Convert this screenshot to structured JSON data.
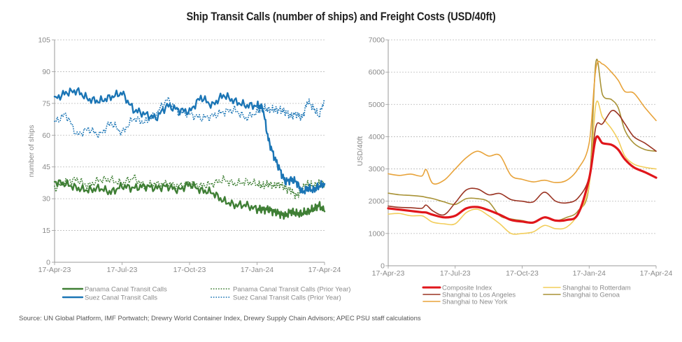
{
  "title": "Ship Transit Calls (number of ships) and Freight Costs (USD/40ft)",
  "source": "Source: UN Global Platform, IMF Portwatch; Drewry World Container Index, Drewry Supply Chain Advisors; APEC PSU staff calculations",
  "chart_data": [
    {
      "type": "line",
      "title": "",
      "ylabel": "number of ships",
      "xlabel": "",
      "ylim": [
        0,
        105
      ],
      "yticks": [
        "0",
        "15",
        "30",
        "45",
        "60",
        "75",
        "90",
        "105"
      ],
      "ytick_values": [
        0,
        15,
        30,
        45,
        60,
        75,
        90,
        105
      ],
      "xticks": [
        "17-Apr-23",
        "17-Jul-23",
        "17-Oct-23",
        "17-Jan-24",
        "17-Apr-24"
      ],
      "x_range_months": [
        0,
        12
      ],
      "grid": true,
      "legend_placement": "bottom",
      "x": [
        0,
        0.5,
        1,
        1.5,
        2,
        2.5,
        3,
        3.5,
        4,
        4.5,
        5,
        5.5,
        6,
        6.5,
        7,
        7.5,
        8,
        8.5,
        9,
        9.25,
        9.5,
        9.75,
        10,
        10.25,
        10.5,
        10.75,
        11,
        11.25,
        11.5,
        11.75,
        12
      ],
      "series": [
        {
          "name": "Panama Canal Transit Calls",
          "color": "#3f7f35",
          "style": "solid",
          "values": [
            38,
            37,
            35,
            34,
            35,
            33,
            36,
            35,
            36,
            35,
            36,
            34,
            37,
            34,
            33,
            29,
            27,
            27,
            25,
            25,
            25,
            24,
            23,
            22,
            24,
            23,
            23,
            24,
            25,
            27,
            24
          ]
        },
        {
          "name": "Suez Canal Transit Calls",
          "color": "#1b75b5",
          "style": "solid",
          "values": [
            77,
            80,
            81,
            77,
            76,
            78,
            80,
            72,
            70,
            68,
            74,
            72,
            71,
            78,
            74,
            79,
            76,
            74,
            74,
            73,
            58,
            50,
            44,
            38,
            39,
            38,
            33,
            35,
            34,
            36,
            37
          ]
        },
        {
          "name": "Panama Canal Transit Calls (Prior Year)",
          "color": "#3f7f35",
          "style": "dotted",
          "values": [
            35,
            38,
            39,
            36,
            39,
            39,
            37,
            40,
            36,
            37,
            37,
            36,
            37,
            36,
            37,
            39,
            37,
            38,
            37,
            36,
            37,
            36,
            37,
            35,
            34,
            31,
            35,
            37,
            36,
            37,
            37
          ]
        },
        {
          "name": "Suez Canal Transit Calls (Prior Year)",
          "color": "#1b75b5",
          "style": "dotted",
          "values": [
            66,
            70,
            60,
            63,
            60,
            66,
            61,
            68,
            66,
            70,
            77,
            71,
            70,
            68,
            69,
            71,
            72,
            68,
            71,
            73,
            72,
            72,
            72,
            71,
            69,
            70,
            68,
            76,
            73,
            69,
            77
          ]
        }
      ]
    },
    {
      "type": "line",
      "title": "",
      "ylabel": "USD/40ft",
      "xlabel": "",
      "ylim": [
        0,
        7000
      ],
      "yticks": [
        "0",
        "1000",
        "2000",
        "3000",
        "4000",
        "5000",
        "6000",
        "7000"
      ],
      "ytick_values": [
        0,
        1000,
        2000,
        3000,
        4000,
        5000,
        6000,
        7000
      ],
      "xticks": [
        "17-Apr-23",
        "17-Jul-23",
        "17-Oct-23",
        "17-Jan-24",
        "17-Apr-24"
      ],
      "x_range_months": [
        0,
        12
      ],
      "grid": true,
      "legend_placement": "bottom",
      "x": [
        0,
        0.5,
        1,
        1.5,
        1.7,
        2,
        2.5,
        3,
        3.5,
        4,
        4.5,
        5,
        5.5,
        6,
        6.5,
        7,
        7.5,
        8,
        8.5,
        9,
        9.3,
        9.6,
        10,
        10.3,
        10.6,
        11,
        11.5,
        12
      ],
      "series": [
        {
          "name": "Composite Index",
          "color": "#e0161b",
          "width": 3.2,
          "values": [
            1780,
            1740,
            1700,
            1660,
            1650,
            1580,
            1500,
            1550,
            1780,
            1820,
            1720,
            1580,
            1420,
            1370,
            1340,
            1500,
            1400,
            1420,
            1600,
            2700,
            3950,
            3800,
            3750,
            3600,
            3300,
            3050,
            2900,
            2730
          ]
        },
        {
          "name": "Shanghai to Los Angeles",
          "color": "#9a3322",
          "width": 1.6,
          "values": [
            1850,
            1810,
            1800,
            1780,
            1880,
            1700,
            1580,
            1950,
            2350,
            2380,
            2200,
            2240,
            2050,
            2000,
            1980,
            2280,
            2000,
            1950,
            2100,
            2750,
            4300,
            4400,
            4800,
            4700,
            4400,
            4000,
            3800,
            3550
          ]
        },
        {
          "name": "Shanghai to New York",
          "color": "#e8a33a",
          "width": 1.6,
          "values": [
            2850,
            2800,
            2840,
            2780,
            2980,
            2550,
            2650,
            3000,
            3350,
            3550,
            3400,
            3420,
            2800,
            2680,
            2600,
            2650,
            2580,
            2650,
            3000,
            3800,
            6100,
            6250,
            6000,
            5750,
            5400,
            5350,
            4900,
            4500
          ]
        },
        {
          "name": "Shanghai to Rotterdam",
          "color": "#f2cd5a",
          "width": 1.6,
          "values": [
            1600,
            1620,
            1550,
            1550,
            1480,
            1350,
            1300,
            1300,
            1650,
            1750,
            1550,
            1300,
            1000,
            1000,
            1050,
            1250,
            1150,
            1200,
            1600,
            2500,
            5000,
            4600,
            4250,
            3900,
            3400,
            3150,
            3050,
            3000
          ]
        },
        {
          "name": "Shanghai to Genoa",
          "color": "#a89235",
          "width": 1.6,
          "values": [
            2250,
            2200,
            2180,
            2150,
            2120,
            2080,
            1980,
            1900,
            2080,
            2080,
            1980,
            1550,
            1450,
            1400,
            1350,
            1500,
            1400,
            1500,
            1700,
            2500,
            6300,
            5300,
            5150,
            4900,
            4200,
            3800,
            3600,
            3550
          ]
        }
      ]
    }
  ]
}
